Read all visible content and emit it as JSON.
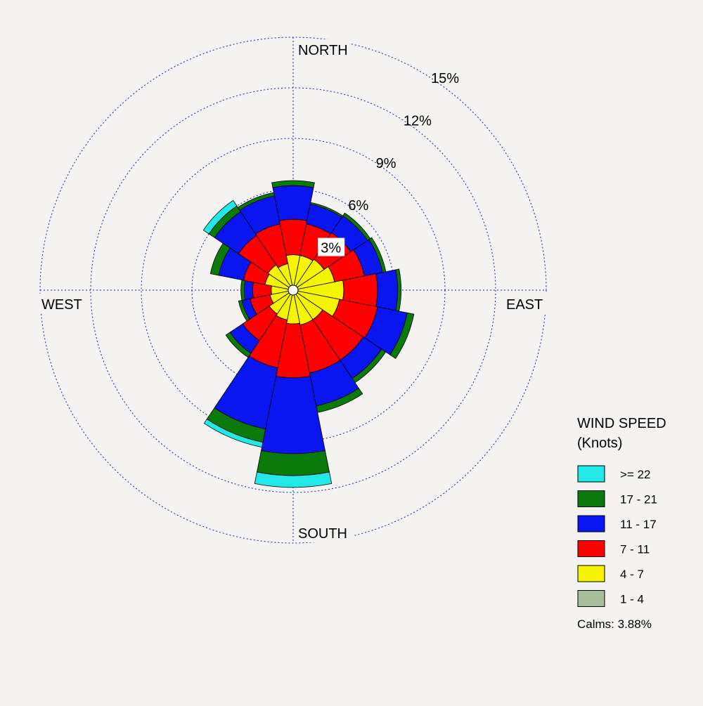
{
  "chart_data": {
    "type": "wind-rose",
    "directions": [
      "N",
      "NNE",
      "NE",
      "ENE",
      "E",
      "ESE",
      "SE",
      "SSE",
      "S",
      "SSW",
      "SW",
      "WSW",
      "W",
      "WNW",
      "NW",
      "NNW"
    ],
    "bin_order": [
      "1 - 4",
      "4 - 7",
      "7 - 11",
      "11 - 17",
      "17 - 21",
      ">= 22"
    ],
    "cumulative_percent": {
      "N": [
        0.2,
        2.1,
        4.2,
        6.2,
        6.5,
        6.5
      ],
      "NNE": [
        0.2,
        2.1,
        4.0,
        5.2,
        5.3,
        5.3
      ],
      "NE": [
        0.2,
        2.2,
        4.1,
        5.3,
        5.5,
        5.5
      ],
      "ENE": [
        0.2,
        2.5,
        4.3,
        5.4,
        5.6,
        5.6
      ],
      "E": [
        0.2,
        3.0,
        5.0,
        6.2,
        6.4,
        6.4
      ],
      "ESE": [
        0.2,
        2.8,
        5.1,
        6.9,
        7.3,
        7.3
      ],
      "SE": [
        0.2,
        2.1,
        5.0,
        6.3,
        6.6,
        6.6
      ],
      "SSE": [
        0.2,
        2.1,
        5.0,
        7.0,
        7.4,
        7.4
      ],
      "S": [
        0.2,
        2.0,
        5.2,
        9.7,
        11.0,
        11.7
      ],
      "SSW": [
        0.2,
        1.8,
        4.7,
        8.4,
        9.2,
        9.5
      ],
      "SW": [
        0.2,
        1.7,
        3.6,
        4.5,
        4.8,
        4.8
      ],
      "WSW": [
        0.2,
        1.4,
        2.6,
        3.1,
        3.3,
        3.3
      ],
      "W": [
        0.2,
        1.3,
        2.4,
        2.9,
        3.1,
        3.1
      ],
      "WNW": [
        0.2,
        1.7,
        3.0,
        4.5,
        5.0,
        5.0
      ],
      "NW": [
        0.2,
        1.8,
        3.9,
        5.6,
        6.0,
        6.4
      ],
      "NNW": [
        0.2,
        1.6,
        4.0,
        5.7,
        5.9,
        5.9
      ]
    },
    "radial_rings": [
      "3%",
      "6%",
      "9%",
      "12%",
      "15%"
    ],
    "radial_max": 15,
    "compass_labels": {
      "north": "NORTH",
      "east": "EAST",
      "south": "SOUTH",
      "west": "WEST"
    },
    "legend": {
      "title_line1": "WIND SPEED",
      "title_line2": "(Knots)",
      "items": [
        {
          "label": ">= 22",
          "color": "#22e8e8"
        },
        {
          "label": "17 - 21",
          "color": "#0a7a0a"
        },
        {
          "label": "11 - 17",
          "color": "#0a16f0"
        },
        {
          "label": "7 - 11",
          "color": "#ff0000"
        },
        {
          "label": "4 - 7",
          "color": "#f5f500"
        },
        {
          "label": "1 - 4",
          "color": "#a6bf99"
        }
      ]
    },
    "calms": "Calms: 3.88%"
  }
}
